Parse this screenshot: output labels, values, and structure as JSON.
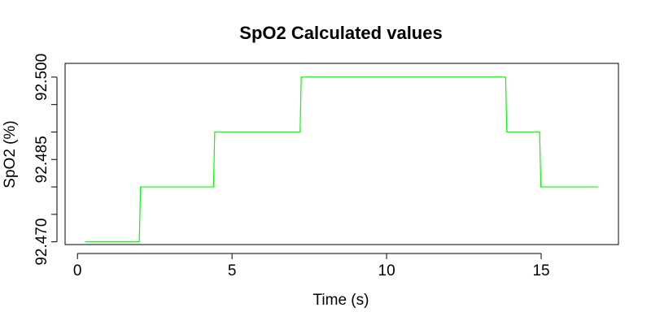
{
  "chart_data": {
    "type": "line",
    "title": "SpO2 Calculated values",
    "xlabel": "Time (s)",
    "ylabel": "SpO2 (%)",
    "xlim": [
      -0.4,
      17.5
    ],
    "ylim": [
      92.4695,
      92.5025
    ],
    "x_ticks": [
      0,
      5,
      10,
      15
    ],
    "x_tick_labels": [
      "0",
      "5",
      "10",
      "15"
    ],
    "y_ticks": [
      92.47,
      92.475,
      92.48,
      92.485,
      92.49,
      92.495,
      92.5
    ],
    "y_tick_labels": [
      "92.470",
      "",
      "",
      "92.485",
      "",
      "",
      "92.500"
    ],
    "grid": false,
    "series": [
      {
        "color": "#00ff00",
        "step": true,
        "x": [
          0.25,
          2.0,
          4.4,
          7.2,
          13.85,
          14.95,
          16.8
        ],
        "y": [
          92.47,
          92.48,
          92.49,
          92.5,
          92.49,
          92.48,
          92.48
        ]
      }
    ]
  }
}
